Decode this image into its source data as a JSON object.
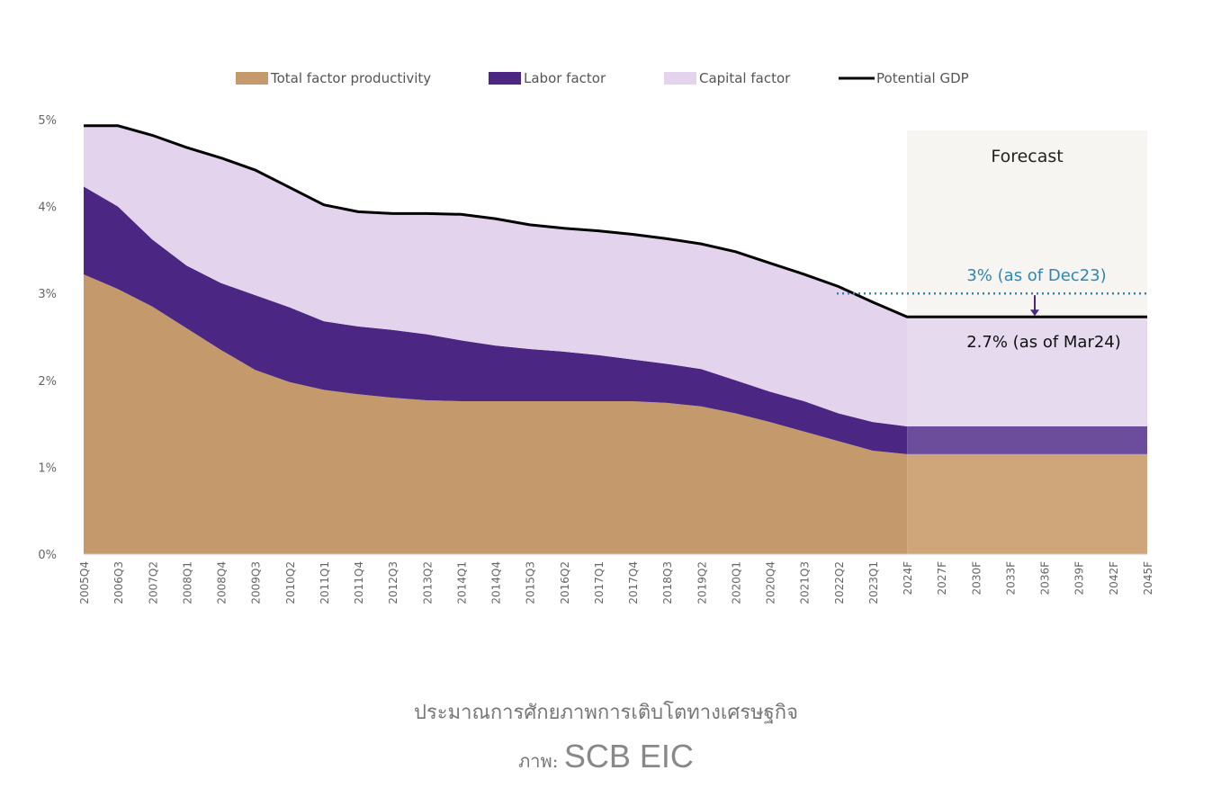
{
  "chart_data": {
    "type": "area",
    "stacked": true,
    "title": "",
    "xlabel": "",
    "ylabel": "",
    "ylim": [
      0,
      5
    ],
    "y_ticks": [
      "0%",
      "1%",
      "2%",
      "3%",
      "4%",
      "5%"
    ],
    "grid": false,
    "legend_position": "top",
    "categories": [
      "2005Q4",
      "2006Q3",
      "2007Q2",
      "2008Q1",
      "2008Q4",
      "2009Q3",
      "2010Q2",
      "2011Q1",
      "2011Q4",
      "2012Q3",
      "2013Q2",
      "2014Q1",
      "2014Q4",
      "2015Q3",
      "2016Q2",
      "2017Q1",
      "2017Q4",
      "2018Q3",
      "2019Q2",
      "2020Q1",
      "2020Q4",
      "2021Q3",
      "2022Q2",
      "2023Q1",
      "2024F",
      "2027F",
      "2030F",
      "2033F",
      "2036F",
      "2039F",
      "2042F",
      "2045F"
    ],
    "series": [
      {
        "name": "Total factor productivity",
        "kind": "area",
        "color": "#c49a6c",
        "forecast_color": "#cfa67a",
        "values": [
          3.22,
          3.05,
          2.85,
          2.6,
          2.35,
          2.12,
          1.98,
          1.89,
          1.84,
          1.8,
          1.77,
          1.76,
          1.76,
          1.76,
          1.76,
          1.76,
          1.76,
          1.74,
          1.7,
          1.62,
          1.52,
          1.41,
          1.3,
          1.19,
          1.15,
          1.15,
          1.15,
          1.15,
          1.15,
          1.15,
          1.15,
          1.15
        ]
      },
      {
        "name": "Labor factor",
        "kind": "area",
        "color": "#4b2683",
        "forecast_color": "#6c4d9c",
        "values": [
          1.01,
          0.95,
          0.77,
          0.72,
          0.77,
          0.86,
          0.86,
          0.79,
          0.78,
          0.78,
          0.76,
          0.7,
          0.64,
          0.6,
          0.57,
          0.53,
          0.48,
          0.45,
          0.43,
          0.38,
          0.35,
          0.35,
          0.32,
          0.33,
          0.32,
          0.32,
          0.32,
          0.32,
          0.32,
          0.32,
          0.32,
          0.32
        ]
      },
      {
        "name": "Capital factor",
        "kind": "area",
        "color": "#e3d3ec",
        "forecast_color": "#e6daee",
        "values": [
          0.7,
          0.93,
          1.2,
          1.36,
          1.44,
          1.44,
          1.38,
          1.34,
          1.32,
          1.34,
          1.39,
          1.45,
          1.46,
          1.43,
          1.42,
          1.43,
          1.44,
          1.44,
          1.44,
          1.48,
          1.48,
          1.46,
          1.46,
          1.38,
          1.26,
          1.26,
          1.26,
          1.26,
          1.26,
          1.26,
          1.26,
          1.26
        ]
      },
      {
        "name": "Potential GDP",
        "kind": "line",
        "color": "#000000",
        "values": [
          4.93,
          4.93,
          4.82,
          4.68,
          4.56,
          4.42,
          4.22,
          4.02,
          3.94,
          3.92,
          3.92,
          3.91,
          3.86,
          3.79,
          3.75,
          3.72,
          3.68,
          3.63,
          3.57,
          3.48,
          3.35,
          3.22,
          3.08,
          2.9,
          2.73,
          2.73,
          2.73,
          2.73,
          2.73,
          2.73,
          2.73,
          2.73
        ]
      }
    ],
    "forecast_start": "2024F",
    "annotations": {
      "forecast_label": "Forecast",
      "previous": {
        "text": "3% (as of Dec23)",
        "value": 3.0,
        "color": "#2e86b8"
      },
      "current": {
        "text": "2.7% (as of Mar24)",
        "value": 2.7
      }
    }
  },
  "caption": {
    "title": "ประมาณการศักยภาพการเติบโตทางเศรษฐกิจ",
    "credit_prefix": "ภาพ:",
    "credit_source": "SCB EIC"
  }
}
